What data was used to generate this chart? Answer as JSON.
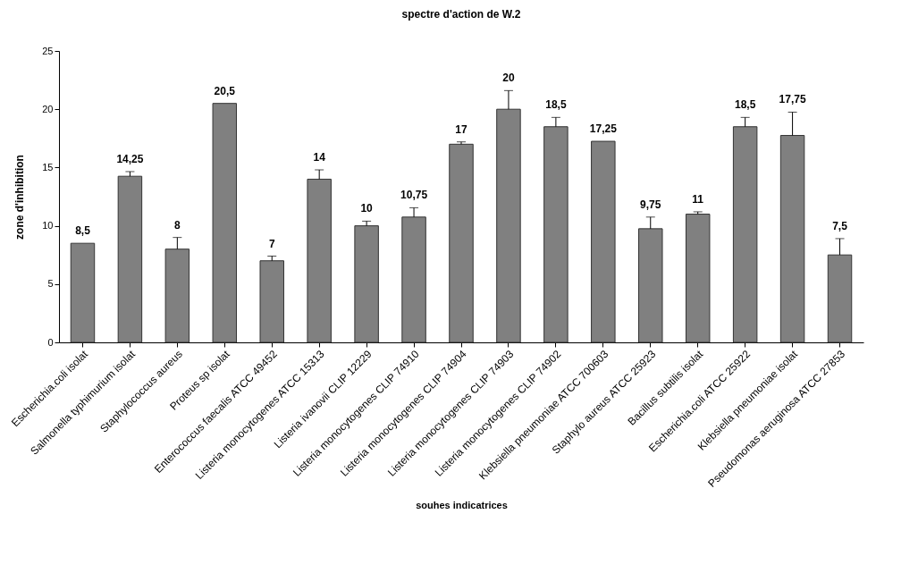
{
  "chart_data": {
    "type": "bar",
    "title": "spectre d'action de W.2",
    "xlabel": "souhes indicatrices",
    "ylabel": "zone d'inhibition",
    "categories": [
      "Escherichia.coli isolat",
      "Salmonella typhimurium isolat",
      "Staphylococcus aureus",
      "Proteus sp isolat",
      "Enterococcus faecalis ATCC 49452",
      "Listeria monocytogenes ATCC 15313",
      "Listeria ivanovii CLIP 12229",
      "Listeria monocytogenes CLIP 74910",
      "Listeria monocytogenes CLIP 74904",
      "Listeria monocytogenes CLIP 74903",
      "Listeria monocytogenes CLIP 74902",
      "Klebsiella pneumoniae ATCC 700603",
      "Staphylo aureus ATCC 25923",
      "Bacillus subtilis isolat",
      "Escherichia.coli ATCC 25922",
      "Klebsiella pneumoniae isolat",
      "Pseudomonas aeruginosa  ATCC 27853"
    ],
    "values": [
      8.5,
      14.25,
      8,
      20.5,
      7,
      14,
      10,
      10.75,
      17,
      20,
      18.5,
      17.25,
      9.75,
      11,
      18.5,
      17.75,
      7.5
    ],
    "value_labels": [
      "8,5",
      "14,25",
      "8",
      "20,5",
      "7",
      "14",
      "10",
      "10,75",
      "17",
      "20",
      "18,5",
      "17,25",
      "9,75",
      "11",
      "18,5",
      "17,75",
      "7,5"
    ],
    "errors": [
      null,
      [
        14.25,
        14.65
      ],
      [
        8,
        9
      ],
      null,
      [
        7,
        7.4
      ],
      [
        14,
        14.8
      ],
      [
        10,
        10.4
      ],
      [
        10.75,
        11.55
      ],
      [
        17,
        17.2
      ],
      [
        20,
        21.6
      ],
      [
        18.5,
        19.3
      ],
      null,
      [
        9.75,
        10.75
      ],
      [
        11,
        11.2
      ],
      [
        18.5,
        19.3
      ],
      [
        17.75,
        19.75
      ],
      [
        7.5,
        8.9
      ]
    ],
    "color": "#808080",
    "ylim": [
      0,
      25
    ],
    "yticks": [
      0,
      5,
      10,
      15,
      20,
      25
    ],
    "grid": false
  }
}
